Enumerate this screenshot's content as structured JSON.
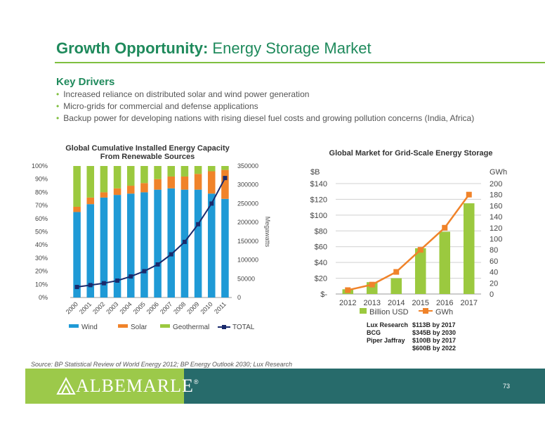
{
  "header": {
    "title_bold": "Growth Opportunity:",
    "title_rest": "Energy Storage Market"
  },
  "key_drivers": {
    "heading": "Key Drivers",
    "items": [
      "Increased reliance on distributed solar and wind power generation",
      "Micro-grids for commercial and defense applications",
      "Backup power for developing nations with rising diesel fuel costs and growing pollution concerns (India, Africa)"
    ]
  },
  "chart_data": [
    {
      "type": "bar",
      "title": "Global Cumulative Installed Energy Capacity From Renewable Sources",
      "stacked_percent": true,
      "categories": [
        "2000",
        "2001",
        "2002",
        "2003",
        "2004",
        "2005",
        "2006",
        "2007",
        "2008",
        "2009",
        "2010",
        "2011"
      ],
      "series": [
        {
          "name": "Wind",
          "color": "#1f9ad6",
          "values": [
            65,
            71,
            76,
            78,
            79,
            80,
            82,
            83,
            82,
            82,
            79,
            75
          ]
        },
        {
          "name": "Solar",
          "color": "#f0832a",
          "values": [
            4,
            5,
            4,
            5,
            6,
            7,
            8,
            9,
            10,
            12,
            17,
            22
          ]
        },
        {
          "name": "Geothermal",
          "color": "#9bc93f",
          "values": [
            31,
            24,
            20,
            17,
            15,
            13,
            10,
            8,
            8,
            6,
            4,
            3
          ]
        },
        {
          "name": "TOTAL",
          "color": "#1a2a6c",
          "axis": "right",
          "values": [
            28000,
            33000,
            38000,
            45000,
            56000,
            70000,
            88000,
            115000,
            148000,
            195000,
            250000,
            318000
          ]
        }
      ],
      "ylim_left": [
        0,
        100
      ],
      "ylim_right": [
        0,
        350000
      ],
      "left_ticks": [
        "0%",
        "10%",
        "20%",
        "30%",
        "40%",
        "50%",
        "60%",
        "70%",
        "80%",
        "90%",
        "100%"
      ],
      "right_ticks": [
        "0",
        "50000",
        "100000",
        "150000",
        "200000",
        "250000",
        "300000",
        "350000"
      ],
      "ylabel_right": "Megawatts",
      "legend": [
        "Wind",
        "Solar",
        "Geothermal",
        "TOTAL"
      ],
      "legend_position": "bottom"
    },
    {
      "type": "bar",
      "title": "Global Market for Grid-Scale Energy Storage",
      "categories": [
        "2012",
        "2013",
        "2014",
        "2015",
        "2016",
        "2017"
      ],
      "series": [
        {
          "name": "Billion USD",
          "color": "#9bc93f",
          "axis": "left",
          "values": [
            6,
            15,
            20,
            58,
            79,
            115
          ]
        },
        {
          "name": "GWh",
          "color": "#f0832a",
          "axis": "right",
          "type": "line",
          "values": [
            7,
            17,
            40,
            80,
            120,
            180
          ]
        }
      ],
      "ylim_left": [
        0,
        140
      ],
      "ylim_right": [
        0,
        200
      ],
      "left_ticks": [
        "$-",
        "$20",
        "$40",
        "$60",
        "$80",
        "$100",
        "$120",
        "$140"
      ],
      "right_ticks": [
        "0",
        "20",
        "40",
        "60",
        "80",
        "100",
        "120",
        "140",
        "160",
        "180",
        "200"
      ],
      "ylabel_left": "$B",
      "ylabel_right": "GWh",
      "legend": [
        "Billion USD",
        "GWh"
      ],
      "legend_position": "bottom"
    }
  ],
  "forecasts": [
    {
      "source": "Lux Research",
      "value": "$113B by 2017"
    },
    {
      "source": "BCG",
      "value": "$345B by 2030"
    },
    {
      "source": "Piper Jaffray",
      "value": "$100B by 2017"
    },
    {
      "source": "",
      "value": "$600B by 2022"
    }
  ],
  "source_note": "Source: BP Statistical Review of World Energy 2012; BP Energy Outlook 2030; Lux Research",
  "footer": {
    "logo_text": "ALBEMARLE",
    "registered": "®",
    "page_number": "73",
    "green": "#9cc94a",
    "teal": "#276b6b"
  }
}
